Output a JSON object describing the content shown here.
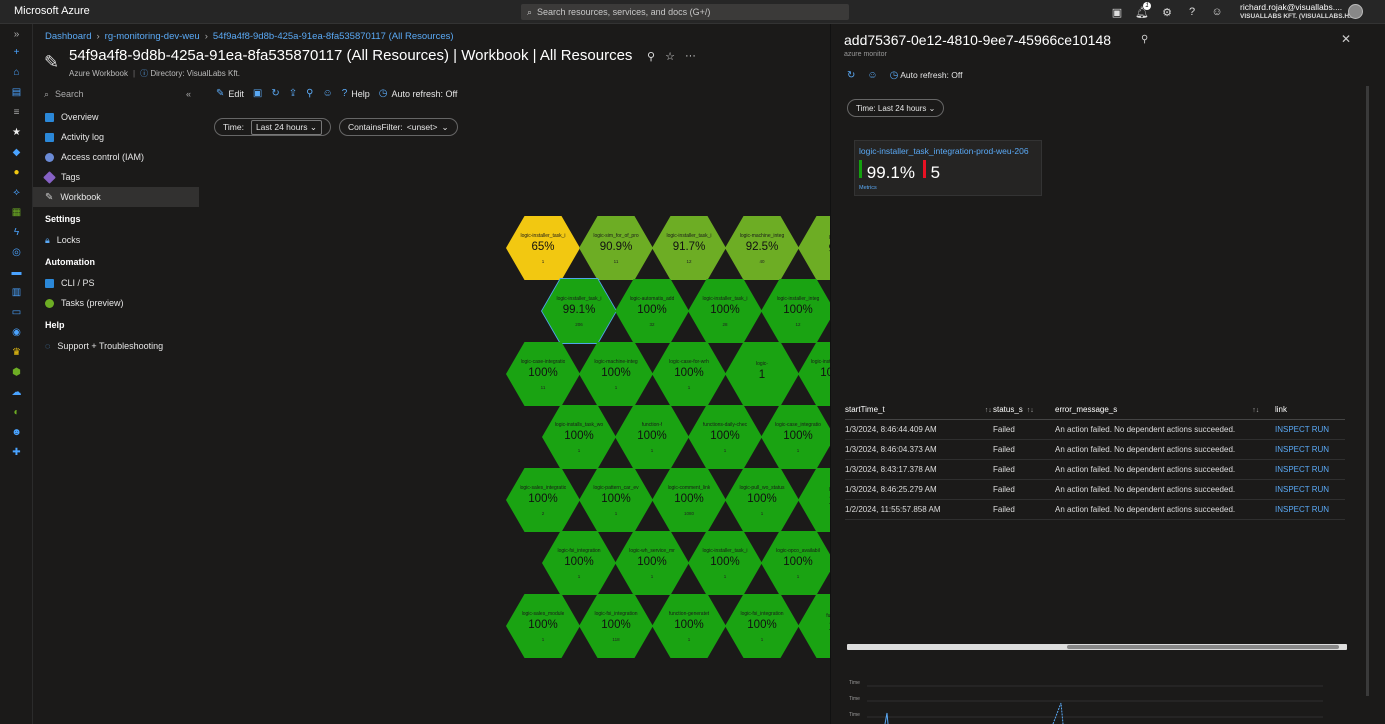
{
  "topbar": {
    "brand": "Microsoft Azure",
    "search_placeholder": "Search resources, services, and docs (G+/)",
    "notification_count": "1",
    "user_email": "richard.rojak@visuallabs....",
    "user_tenant": "VISUALLABS KFT. (VISUALLABS.H..."
  },
  "breadcrumb": [
    "Dashboard",
    "rg-monitoring-dev-weu",
    "54f9a4f8-9d8b-425a-91ea-8fa535870117 (All Resources)"
  ],
  "page": {
    "title": "54f9a4f8-9d8b-425a-91ea-8fa535870117 (All Resources) | Workbook | All Resources",
    "subtitle": "Azure Workbook",
    "directory": "Directory: VisualLabs Kft."
  },
  "leftnav": {
    "search_placeholder": "Search",
    "items": [
      {
        "label": "Overview",
        "color": "#2b88d8"
      },
      {
        "label": "Activity log",
        "color": "#2b88d8"
      },
      {
        "label": "Access control (IAM)",
        "color": "#6b8bd6"
      },
      {
        "label": "Tags",
        "color": "#8661c5"
      },
      {
        "label": "Workbook",
        "color": "#cccccc"
      }
    ],
    "sections": {
      "settings": "Settings",
      "locks": "Locks",
      "automation": "Automation",
      "cli": "CLI / PS",
      "tasks": "Tasks (preview)",
      "help": "Help",
      "support": "Support + Troubleshooting"
    }
  },
  "toolbar": {
    "edit": "Edit",
    "help": "Help",
    "autorefresh": "Auto refresh: Off"
  },
  "filters": {
    "time_label": "Time:",
    "time_value": "Last 24 hours",
    "contains_label": "ContainsFilter:",
    "contains_value": "<unset>"
  },
  "hexes": [
    {
      "name": "logic-installer_task_i",
      "value": "65%",
      "count": "1",
      "color": "#f2c811"
    },
    {
      "name": "logic-sim_for_of_pro",
      "value": "90.9%",
      "count": "11",
      "color": "#6dad24"
    },
    {
      "name": "logic-installer_task_i",
      "value": "91.7%",
      "count": "12",
      "color": "#6dad24"
    },
    {
      "name": "logic-machine_integ",
      "value": "92.5%",
      "count": "40",
      "color": "#6dad24"
    },
    {
      "name": "logic-",
      "value": "96",
      "count": "",
      "color": "#6dad24"
    },
    {
      "name": "logic-installer_task_i",
      "value": "99.1%",
      "count": "206",
      "color": "#1aa312"
    },
    {
      "name": "logic-automatis_add",
      "value": "100%",
      "count": "32",
      "color": "#1aa312"
    },
    {
      "name": "logic-installer_task_i",
      "value": "100%",
      "count": "28",
      "color": "#1aa312"
    },
    {
      "name": "logic-installer_integ",
      "value": "100%",
      "count": "12",
      "color": "#1aa312"
    },
    {
      "name": "logic-case-integratio",
      "value": "100%",
      "count": "107",
      "color": "#1aa312"
    },
    {
      "name": "logic-case-integratio",
      "value": "100%",
      "count": "11",
      "color": "#1aa312"
    },
    {
      "name": "logic-machine-integ",
      "value": "100%",
      "count": "1",
      "color": "#1aa312"
    },
    {
      "name": "logic-case-for-wrh",
      "value": "100%",
      "count": "1",
      "color": "#1aa312"
    },
    {
      "name": "logic-",
      "value": "1",
      "count": "",
      "color": "#1aa312"
    },
    {
      "name": "logic-installs_task_wo",
      "value": "100%",
      "count": "1",
      "color": "#1aa312"
    },
    {
      "name": "function-f",
      "value": "100%",
      "count": "1",
      "color": "#1aa312"
    },
    {
      "name": "functions-daily-chec",
      "value": "100%",
      "count": "1",
      "color": "#1aa312"
    },
    {
      "name": "logic-case_integratio",
      "value": "100%",
      "count": "1",
      "color": "#1aa312"
    },
    {
      "name": "logic-sales_integratio",
      "value": "100%",
      "count": "2",
      "color": "#1aa312"
    },
    {
      "name": "logic-pattern_car_ev",
      "value": "100%",
      "count": "1",
      "color": "#1aa312"
    },
    {
      "name": "logic-comment_link",
      "value": "100%",
      "count": "1080",
      "color": "#1aa312"
    },
    {
      "name": "logic-pull_wo_status",
      "value": "100%",
      "count": "1",
      "color": "#1aa312"
    },
    {
      "name": "logic-",
      "value": "10",
      "count": "",
      "color": "#1aa312"
    },
    {
      "name": "logic-fsi_integration",
      "value": "100%",
      "count": "1",
      "color": "#1aa312"
    },
    {
      "name": "logic-wh_service_mr",
      "value": "100%",
      "count": "1",
      "color": "#1aa312"
    },
    {
      "name": "logic-installer_task_i",
      "value": "100%",
      "count": "1",
      "color": "#1aa312"
    },
    {
      "name": "logic-opco_availabil",
      "value": "100%",
      "count": "1",
      "color": "#1aa312"
    },
    {
      "name": "logic-sales_module",
      "value": "100%",
      "count": "1",
      "color": "#1aa312"
    },
    {
      "name": "logic-fsi_integration",
      "value": "100%",
      "count": "118",
      "color": "#1aa312"
    },
    {
      "name": "function-generatet",
      "value": "100%",
      "count": "1",
      "color": "#1aa312"
    },
    {
      "name": "logic-fsi_integration",
      "value": "100%",
      "count": "1",
      "color": "#1aa312"
    },
    {
      "name": "function",
      "value": "10",
      "count": "",
      "color": "#1aa312"
    }
  ],
  "panel": {
    "title": "add75367-0e12-4810-9ee7-45966ce10148",
    "subtitle": "azure monitor",
    "autorefresh": "Auto refresh: Off",
    "time": "Time: Last 24 hours",
    "tile": {
      "name": "logic-installer_task_integration-prod-weu-206",
      "success": "99.1%",
      "failures": "5",
      "link": "Metrics",
      "success_color": "#13a10e",
      "fail_color": "#e81123"
    },
    "table": {
      "headers": [
        "startTime_t",
        "status_s",
        "error_message_s",
        "link"
      ],
      "rows": [
        [
          "1/3/2024, 8:46:44.409 AM",
          "Failed",
          "An action failed. No dependent actions succeeded.",
          "INSPECT RUN"
        ],
        [
          "1/3/2024, 8:46:04.373 AM",
          "Failed",
          "An action failed. No dependent actions succeeded.",
          "INSPECT RUN"
        ],
        [
          "1/3/2024, 8:43:17.378 AM",
          "Failed",
          "An action failed. No dependent actions succeeded.",
          "INSPECT RUN"
        ],
        [
          "1/3/2024, 8:46:25.279 AM",
          "Failed",
          "An action failed. No dependent actions succeeded.",
          "INSPECT RUN"
        ],
        [
          "1/2/2024, 11:55:57.858 AM",
          "Failed",
          "An action failed. No dependent actions succeeded.",
          "INSPECT RUN"
        ]
      ]
    },
    "mini_chart": {
      "y_ticks": [
        "Time",
        "Time",
        "Time"
      ]
    }
  }
}
